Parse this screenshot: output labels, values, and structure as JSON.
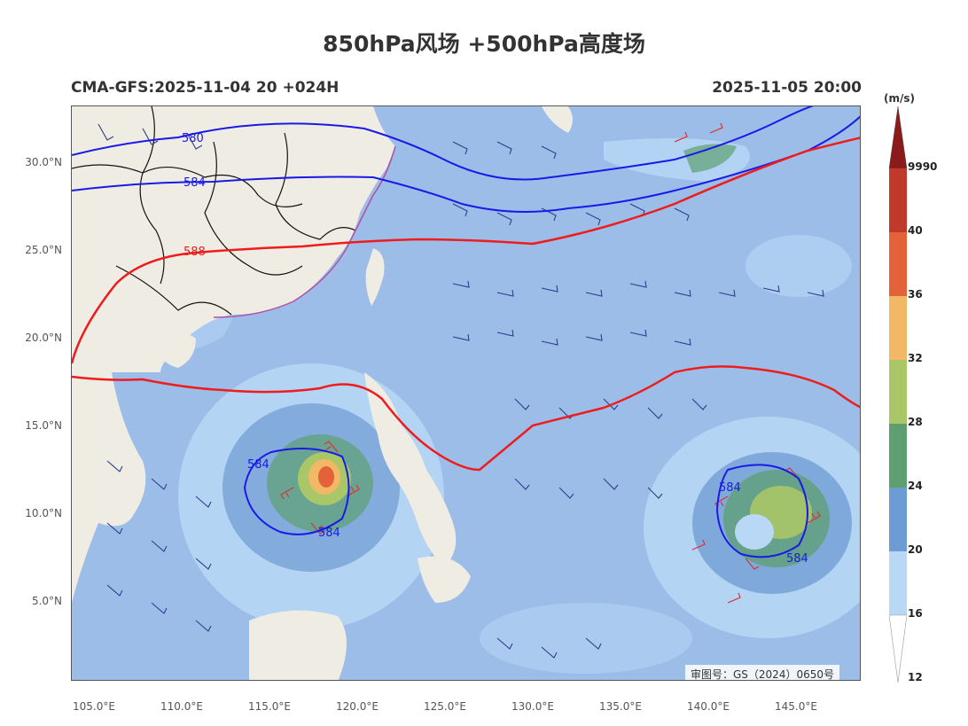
{
  "title": "850hPa风场 +500hPa高度场",
  "run_label": "CMA-GFS:2025-11-04 20 +024H",
  "valid_label": "2025-11-05 20:00",
  "lat_labels": [
    "30.0°N",
    "25.0°N",
    "20.0°N",
    "15.0°N",
    "10.0°N",
    "5.0°N"
  ],
  "lon_labels": [
    "105.0°E",
    "110.0°E",
    "115.0°E",
    "120.0°E",
    "125.0°E",
    "130.0°E",
    "135.0°E",
    "140.0°E",
    "145.0°E"
  ],
  "contour_labels": {
    "c580": "580",
    "c584a": "584",
    "c588": "588",
    "c584b": "584",
    "c584c": "584",
    "c584d": "584",
    "c584e": "584"
  },
  "credit": "审图号：GS（2024）0650号",
  "colorbar": {
    "unit": "(m/s)",
    "labels": [
      "9990",
      "40",
      "36",
      "32",
      "28",
      "24",
      "20",
      "16",
      "12"
    ],
    "colors": [
      "#8b1a1a",
      "#c0392b",
      "#e3623a",
      "#f2b866",
      "#a9c766",
      "#5e9f72",
      "#6d9bd3",
      "#b8d8f5",
      "#ffffff"
    ]
  },
  "colors": {
    "ocean": "#9dbde9",
    "land": "#efece4",
    "contour_588": "#ee1c1c",
    "contour_584": "#1a1ae6"
  }
}
